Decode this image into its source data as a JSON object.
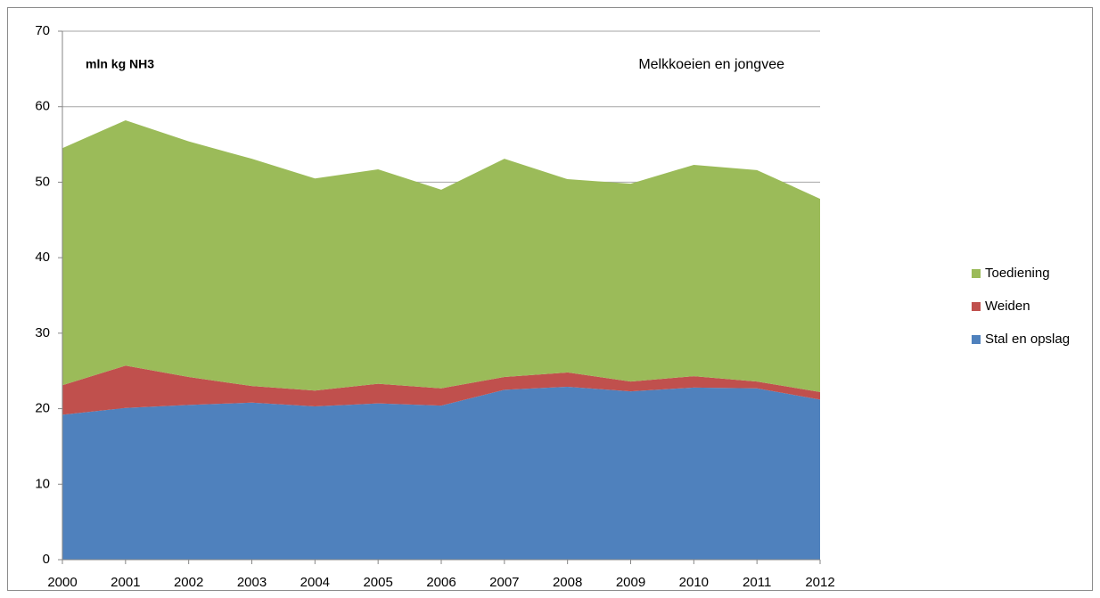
{
  "chart_data": {
    "type": "stacked-area",
    "annotations": [
      "mln kg NH3",
      "Melkkoeien en jongvee"
    ],
    "x": [
      2000,
      2001,
      2002,
      2003,
      2004,
      2005,
      2006,
      2007,
      2008,
      2009,
      2010,
      2011,
      2012
    ],
    "xlim": [
      2000,
      2012
    ],
    "xticks": [
      2000,
      2001,
      2002,
      2003,
      2004,
      2005,
      2006,
      2007,
      2008,
      2009,
      2010,
      2011,
      2012
    ],
    "ylim": [
      0,
      70
    ],
    "yticks": [
      0,
      10,
      20,
      30,
      40,
      50,
      60,
      70
    ],
    "grid": true,
    "legend": "right",
    "series": [
      {
        "name": "Stal en opslag",
        "color": "#4f81bd",
        "values": [
          19.2,
          20.1,
          20.5,
          20.8,
          20.3,
          20.7,
          20.4,
          22.5,
          22.9,
          22.3,
          22.8,
          22.7,
          21.2
        ]
      },
      {
        "name": "Weiden",
        "color": "#c0504d",
        "values": [
          3.9,
          5.6,
          3.7,
          2.2,
          2.1,
          2.6,
          2.3,
          1.7,
          1.9,
          1.3,
          1.5,
          0.9,
          1.0
        ]
      },
      {
        "name": "Toediening",
        "color": "#9bbb59",
        "values": [
          31.4,
          32.5,
          31.2,
          30.1,
          28.1,
          28.4,
          26.3,
          28.9,
          25.6,
          26.2,
          28.0,
          28.0,
          25.6
        ]
      }
    ]
  }
}
